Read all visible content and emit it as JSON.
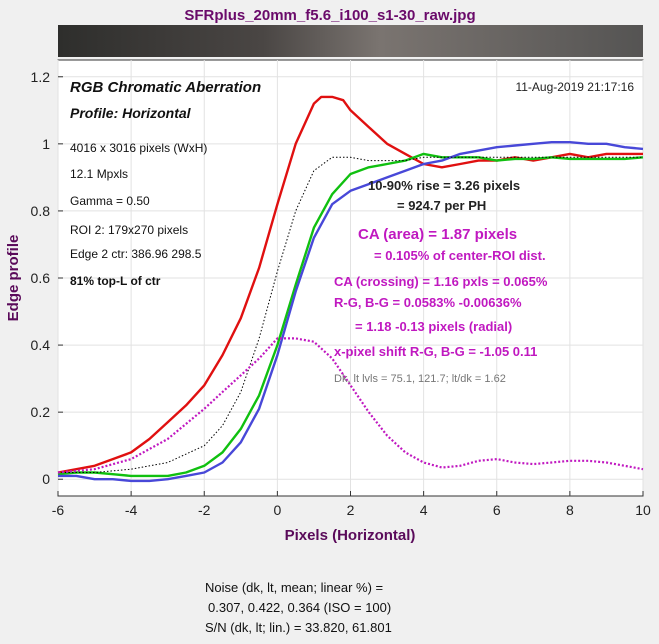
{
  "window_title": "SFRplus_20mm_f5.6_i100_s1-30_raw.jpg",
  "chart_data": {
    "type": "line",
    "title": "RGB Chromatic Aberration",
    "subtitle": "Profile: Horizontal",
    "timestamp": "11-Aug-2019 21:17:16",
    "xlabel": "Pixels (Horizontal)",
    "ylabel": "Edge profile",
    "xlim": [
      -6,
      10
    ],
    "ylim": [
      -0.05,
      1.25
    ],
    "xticks": [
      "-6",
      "-4",
      "-2",
      "0",
      "2",
      "4",
      "6",
      "8",
      "10"
    ],
    "yticks": [
      "0",
      "0.2",
      "0.4",
      "0.6",
      "0.8",
      "1",
      "1.2"
    ],
    "colors": {
      "red": "#e01010",
      "green": "#10c010",
      "blue": "#4848d8",
      "magenta": "#c018c0",
      "reference": "#000000"
    },
    "series": [
      {
        "style": "solid",
        "color": "red",
        "x": [
          -6,
          -5.5,
          -5,
          -4.5,
          -4,
          -3.5,
          -3,
          -2.5,
          -2,
          -1.5,
          -1,
          -0.5,
          0,
          0.5,
          1,
          1.2,
          1.5,
          1.8,
          2,
          2.5,
          3,
          3.5,
          4,
          4.5,
          5,
          5.5,
          6,
          6.5,
          7,
          7.5,
          8,
          8.5,
          9,
          9.5,
          10
        ],
        "y": [
          0.02,
          0.03,
          0.04,
          0.06,
          0.08,
          0.12,
          0.17,
          0.22,
          0.28,
          0.37,
          0.48,
          0.63,
          0.82,
          1.0,
          1.12,
          1.14,
          1.14,
          1.13,
          1.1,
          1.05,
          1.0,
          0.97,
          0.94,
          0.93,
          0.94,
          0.95,
          0.95,
          0.96,
          0.95,
          0.96,
          0.97,
          0.96,
          0.97,
          0.97,
          0.97
        ]
      },
      {
        "style": "solid",
        "color": "green",
        "x": [
          -6,
          -5.5,
          -5,
          -4.5,
          -4,
          -3.5,
          -3,
          -2.5,
          -2,
          -1.5,
          -1,
          -0.5,
          0,
          0.5,
          1,
          1.5,
          2,
          2.5,
          3,
          3.5,
          4,
          4.5,
          5,
          5.5,
          6,
          6.5,
          7,
          7.5,
          8,
          8.5,
          9,
          9.5,
          10
        ],
        "y": [
          0.015,
          0.02,
          0.02,
          0.015,
          0.01,
          0.01,
          0.01,
          0.02,
          0.04,
          0.08,
          0.15,
          0.25,
          0.4,
          0.58,
          0.75,
          0.85,
          0.91,
          0.93,
          0.94,
          0.95,
          0.97,
          0.96,
          0.96,
          0.96,
          0.95,
          0.955,
          0.955,
          0.96,
          0.955,
          0.955,
          0.955,
          0.955,
          0.96
        ]
      },
      {
        "style": "solid",
        "color": "blue",
        "x": [
          -6,
          -5.5,
          -5,
          -4.5,
          -4,
          -3.5,
          -3,
          -2.5,
          -2,
          -1.5,
          -1,
          -0.5,
          0,
          0.5,
          1,
          1.5,
          2,
          2.5,
          3,
          3.5,
          4,
          4.5,
          5,
          5.5,
          6,
          6.5,
          7,
          7.5,
          8,
          8.5,
          9,
          9.5,
          10
        ],
        "y": [
          0.01,
          0.01,
          0.0,
          0.0,
          -0.005,
          -0.005,
          0.0,
          0.01,
          0.02,
          0.05,
          0.11,
          0.21,
          0.37,
          0.56,
          0.72,
          0.82,
          0.86,
          0.88,
          0.9,
          0.92,
          0.94,
          0.95,
          0.97,
          0.98,
          0.99,
          0.995,
          1.0,
          1.005,
          1.005,
          1.0,
          1.0,
          0.99,
          0.985
        ]
      },
      {
        "style": "dotted",
        "color": "reference",
        "x": [
          -6,
          -5,
          -4,
          -3,
          -2,
          -1.5,
          -1,
          -0.5,
          0,
          0.5,
          1,
          1.5,
          2,
          2.5,
          3,
          3.5,
          4,
          5,
          6,
          7,
          8,
          9,
          10
        ],
        "y": [
          0.02,
          0.02,
          0.03,
          0.05,
          0.1,
          0.16,
          0.26,
          0.42,
          0.62,
          0.8,
          0.92,
          0.96,
          0.96,
          0.95,
          0.95,
          0.95,
          0.96,
          0.96,
          0.96,
          0.96,
          0.96,
          0.96,
          0.96
        ]
      },
      {
        "style": "dotted",
        "color": "magenta",
        "x": [
          -6,
          -5,
          -4,
          -3,
          -2,
          -1.5,
          -1,
          -0.5,
          0,
          0.5,
          1,
          1.5,
          2,
          2.5,
          3,
          3.5,
          4,
          4.5,
          5,
          5.5,
          6,
          6.5,
          7,
          7.5,
          8,
          8.5,
          9,
          9.5,
          10
        ],
        "y": [
          0.02,
          0.03,
          0.06,
          0.12,
          0.21,
          0.26,
          0.31,
          0.36,
          0.42,
          0.42,
          0.41,
          0.36,
          0.28,
          0.2,
          0.13,
          0.08,
          0.05,
          0.035,
          0.04,
          0.055,
          0.06,
          0.05,
          0.045,
          0.05,
          0.055,
          0.055,
          0.05,
          0.04,
          0.03
        ]
      }
    ]
  },
  "info_left": [
    "4016 x 3016 pixels (WxH)",
    "12.1 Mpxls",
    "Gamma = 0.50",
    "ROI 2: 179x270 pixels",
    "Edge 2 ctr: 386.96  298.5",
    "81% top-L of ctr"
  ],
  "annotations": {
    "rise_line1": "10-90% rise = 3.26 pixels",
    "rise_line2": "= 924.7 per PH",
    "ca_area": "CA (area) = 1.87 pixels",
    "ca_area_pct": "= 0.105% of center-ROI dist.",
    "ca_crossing": "CA (crossing) = 1.16 pxls = 0.065%",
    "rg_bg": "R-G, B-G = 0.0583%  -0.00636%",
    "radial": "= 1.18  -0.13 pixels (radial)",
    "xshift": "x-pixel shift R-G, B-G = -1.05  0.11",
    "dk_lt": "Dk, lt lvls = 75.1, 121.7;  lt/dk = 1.62"
  },
  "noise": {
    "line1": "Noise (dk, lt, mean; linear %) =",
    "line2": "0.307,   0.422,   0.364  (ISO =  100)",
    "line3": "S/N (dk, lt; lin.) = 33.820,  61.801"
  }
}
